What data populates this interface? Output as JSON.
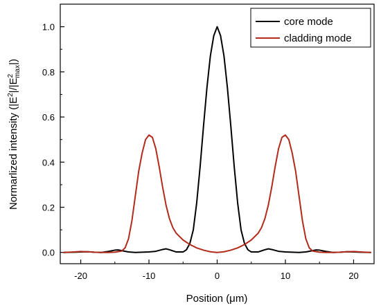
{
  "chart_data": {
    "type": "line",
    "xlabel": "Position (μm)",
    "ylabel": {
      "prefix": "Normarlized intensity (|E",
      "sup1": "2",
      "mid": "|/|E",
      "sup2": "2",
      "sub2": "max",
      "suffix": "|)"
    },
    "xlim": [
      -23,
      23
    ],
    "ylim": [
      -0.05,
      1.1
    ],
    "xticks": [
      -20,
      -10,
      0,
      10,
      20
    ],
    "yticks": [
      0.0,
      0.2,
      0.4,
      0.6,
      0.8,
      1.0
    ],
    "xtick_labels": [
      "-20",
      "-10",
      "0",
      "10",
      "20"
    ],
    "ytick_labels": [
      "0.0",
      "0.2",
      "0.4",
      "0.6",
      "0.8",
      "1.0"
    ],
    "grid": false,
    "legend_position": "top-right",
    "series": [
      {
        "name": "core mode",
        "color": "#000000",
        "x": [
          -22.5,
          -21,
          -20,
          -19,
          -18,
          -17,
          -16,
          -15,
          -14.5,
          -14,
          -13,
          -12,
          -11,
          -10,
          -9,
          -8,
          -7.5,
          -7,
          -6,
          -5,
          -4.5,
          -4,
          -3.5,
          -3,
          -2.5,
          -2,
          -1.5,
          -1,
          -0.5,
          0,
          0.5,
          1,
          1.5,
          2,
          2.5,
          3,
          3.5,
          4,
          4.5,
          5,
          6,
          7,
          7.5,
          8,
          9,
          10,
          11,
          12,
          13,
          14,
          14.5,
          15,
          16,
          17,
          18,
          19,
          20,
          21,
          22.5
        ],
        "y": [
          0.0,
          0.001,
          0.002,
          0.003,
          0.001,
          0.0,
          0.004,
          0.01,
          0.011,
          0.008,
          0.002,
          0.0,
          0.001,
          0.002,
          0.005,
          0.013,
          0.016,
          0.012,
          0.002,
          0.002,
          0.012,
          0.04,
          0.1,
          0.22,
          0.38,
          0.56,
          0.73,
          0.87,
          0.96,
          1.0,
          0.96,
          0.87,
          0.73,
          0.56,
          0.38,
          0.22,
          0.1,
          0.04,
          0.012,
          0.002,
          0.002,
          0.012,
          0.016,
          0.013,
          0.005,
          0.002,
          0.001,
          0.0,
          0.002,
          0.008,
          0.011,
          0.01,
          0.004,
          0.0,
          0.001,
          0.003,
          0.002,
          0.001,
          0.0
        ]
      },
      {
        "name": "cladding mode",
        "color": "#b22a1a",
        "x": [
          -22.5,
          -21,
          -20,
          -19,
          -18,
          -17,
          -16,
          -15,
          -14,
          -13.5,
          -13,
          -12.5,
          -12,
          -11.5,
          -11,
          -10.5,
          -10,
          -9.5,
          -9,
          -8.5,
          -8,
          -7.5,
          -7,
          -6.5,
          -6,
          -5,
          -4,
          -3,
          -2,
          -1,
          0,
          1,
          2,
          3,
          4,
          5,
          6,
          6.5,
          7,
          7.5,
          8,
          8.5,
          9,
          9.5,
          10,
          10.5,
          11,
          11.5,
          12,
          12.5,
          13,
          13.5,
          14,
          15,
          16,
          17,
          18,
          19,
          20,
          21,
          22.5
        ],
        "y": [
          0.0,
          0.002,
          0.004,
          0.003,
          0.001,
          0.0,
          0.0,
          0.001,
          0.006,
          0.02,
          0.06,
          0.14,
          0.25,
          0.36,
          0.44,
          0.5,
          0.52,
          0.51,
          0.46,
          0.38,
          0.29,
          0.21,
          0.15,
          0.11,
          0.085,
          0.055,
          0.035,
          0.02,
          0.01,
          0.003,
          0.0,
          0.003,
          0.01,
          0.02,
          0.035,
          0.055,
          0.085,
          0.11,
          0.15,
          0.21,
          0.29,
          0.38,
          0.46,
          0.51,
          0.52,
          0.5,
          0.44,
          0.36,
          0.25,
          0.14,
          0.06,
          0.02,
          0.006,
          0.001,
          0.0,
          0.0,
          0.001,
          0.003,
          0.004,
          0.002,
          0.0
        ]
      }
    ]
  }
}
